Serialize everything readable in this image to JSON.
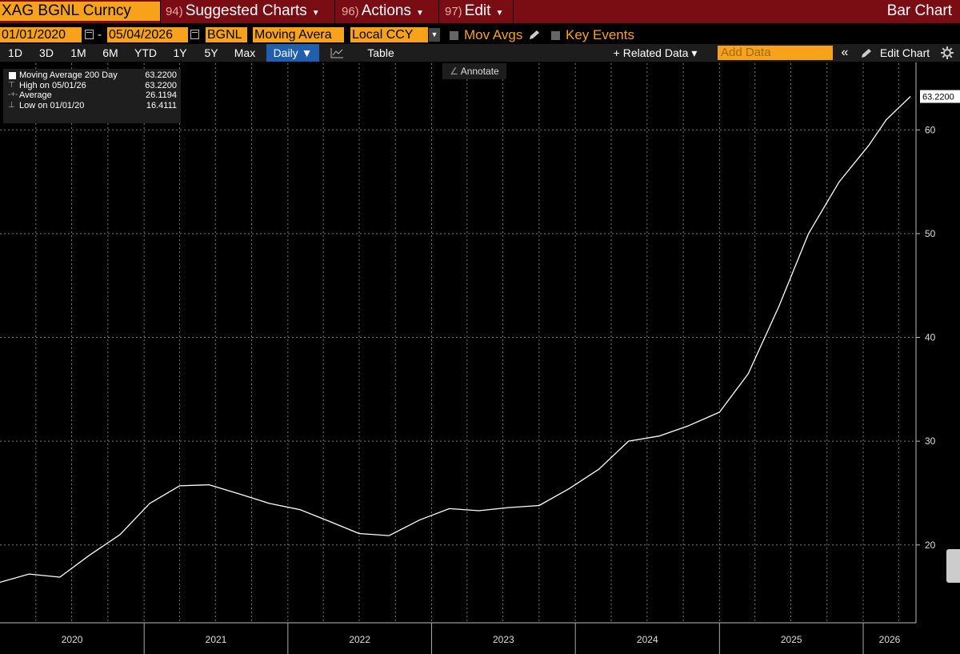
{
  "header": {
    "ticker": "XAG BGNL Curncy",
    "menus": [
      {
        "num": "94)",
        "label": "Suggested Charts"
      },
      {
        "num": "96)",
        "label": "Actions"
      },
      {
        "num": "97)",
        "label": "Edit"
      }
    ],
    "chart_mode": "Bar Chart"
  },
  "toolbar": {
    "start_date": "01/01/2020",
    "end_date": "05/04/2026",
    "source": "BGNL",
    "study": "Moving Avera",
    "currency": "Local CCY",
    "mov_avgs_label": "Mov Avgs",
    "key_events_label": "Key Events"
  },
  "periods": [
    "1D",
    "3D",
    "1M",
    "6M",
    "YTD",
    "1Y",
    "5Y",
    "Max"
  ],
  "frequency": "Daily ▼",
  "table_label": "Table",
  "related_data_label": "+ Related Data ▾",
  "add_data_placeholder": "Add Data",
  "edit_chart_label": "Edit Chart",
  "annotate_label": "Annotate",
  "legend": {
    "rows": [
      {
        "label": "Moving Average 200 Day",
        "value": "63.2200"
      },
      {
        "label": "High on 05/01/26",
        "value": "63.2200"
      },
      {
        "label": "Average",
        "value": "26.1194"
      },
      {
        "label": "Low on 01/01/20",
        "value": "16.4111"
      }
    ]
  },
  "last_value_label": "63.2200",
  "chart_data": {
    "type": "line",
    "series": [
      {
        "name": "Moving Average 200 Day",
        "x": [
          "2020-01-01",
          "2020-03-15",
          "2020-06-01",
          "2020-08-15",
          "2020-11-01",
          "2021-01-15",
          "2021-04-01",
          "2021-06-15",
          "2021-09-01",
          "2021-11-15",
          "2022-02-01",
          "2022-04-15",
          "2022-07-01",
          "2022-09-15",
          "2022-12-01",
          "2023-02-15",
          "2023-05-01",
          "2023-07-15",
          "2023-10-01",
          "2023-12-15",
          "2024-03-01",
          "2024-05-15",
          "2024-08-01",
          "2024-10-15",
          "2025-01-01",
          "2025-03-15",
          "2025-06-01",
          "2025-08-15",
          "2025-11-01",
          "2026-01-15",
          "2026-03-01",
          "2026-05-01"
        ],
        "values": [
          16.4,
          17.2,
          16.9,
          19.0,
          21.0,
          24.0,
          25.7,
          25.8,
          24.9,
          24.0,
          23.4,
          22.3,
          21.1,
          20.9,
          22.4,
          23.5,
          23.3,
          23.6,
          23.8,
          25.4,
          27.3,
          30.0,
          30.5,
          31.5,
          32.8,
          36.5,
          43.0,
          50.0,
          55.0,
          58.5,
          61.0,
          63.22
        ]
      }
    ],
    "x_ticks": [
      "2020",
      "2021",
      "2022",
      "2023",
      "2024",
      "2025",
      "2026"
    ],
    "y_ticks": [
      20,
      30,
      40,
      50,
      60
    ],
    "ylim": [
      12.5,
      66.5
    ],
    "xlim": [
      "2020-01-01",
      "2026-05-15"
    ],
    "grid": true,
    "background": "#000000",
    "line_color": "#ffffff",
    "grid_color": "#7a7a7a"
  },
  "colors": {
    "accent": "#f7a21a",
    "header_bg": "#7a0c14",
    "selected": "#1f5fb0"
  }
}
